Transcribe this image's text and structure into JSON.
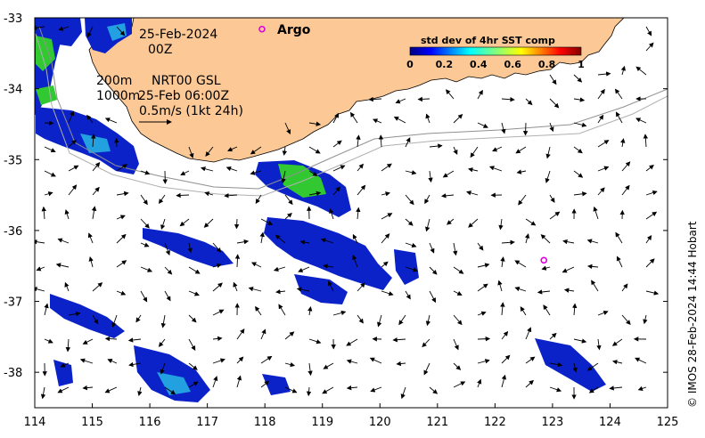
{
  "map": {
    "date_label": "25-Feb-2024",
    "time_label": "00Z",
    "argo_label": "Argo",
    "isobath_label_1": "200m",
    "isobath_label_2": "1000m",
    "product_label": "NRT00 GSL",
    "analysis_time": "25-Feb 06:00Z",
    "vector_scale_label": "0.5m/s (1kt 24h)",
    "credit": "© IMOS 28-Feb-2024 14:44 Hobart",
    "lon_ticks": [
      "114",
      "115",
      "116",
      "117",
      "118",
      "119",
      "120",
      "121",
      "122",
      "123",
      "124",
      "125"
    ],
    "lat_ticks": [
      "-33",
      "-34",
      "-35",
      "-36",
      "-37",
      "-38"
    ],
    "lon_range": [
      114,
      125
    ],
    "lat_range": [
      -38.5,
      -33
    ],
    "argo_position": {
      "lon": 122.85,
      "lat": -36.42
    },
    "argo_legend_marker": {
      "lon": 117.95,
      "lat": -33.16
    },
    "colors": {
      "land": "#fcc996",
      "argo": "#e000e0",
      "frame": "#000000"
    }
  },
  "colorbar": {
    "title": "std dev of 4hr SST comp",
    "ticks": [
      "0",
      "0.2",
      "0.4",
      "0.6",
      "0.8",
      "1"
    ],
    "range": [
      0,
      1
    ],
    "colormap": "jet"
  }
}
